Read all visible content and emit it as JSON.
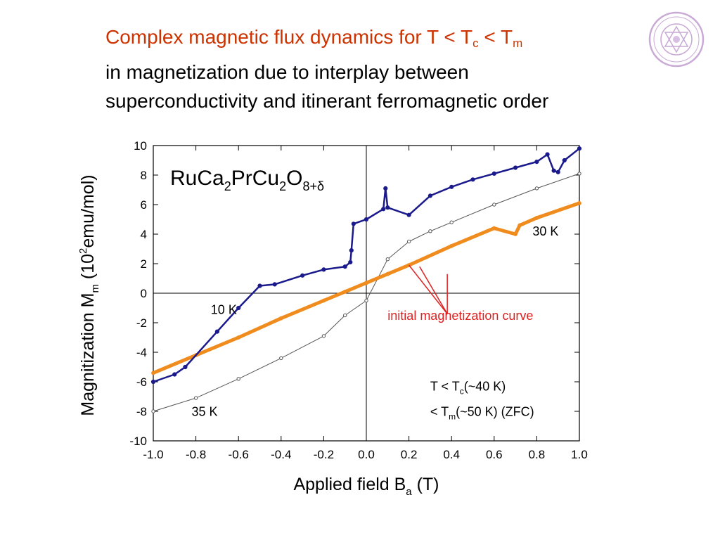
{
  "slide": {
    "title_line1_main": "Complex magnetic flux dynamics for T < T",
    "title_line1_sub_c": "c",
    "title_line1_mid": " < T",
    "title_line1_sub_m": "m",
    "title_line2": "in magnetization due to interplay between",
    "title_line3": "superconductivity and itinerant ferromagnetic order",
    "logo_icon": "university-seal-icon"
  },
  "chart_data": {
    "type": "line",
    "compound": {
      "main": "RuCa",
      "s1": "2",
      "m2": "PrCu",
      "s2": "2",
      "m3": "O",
      "s3": "8+δ"
    },
    "xlabel": {
      "main": "Applied field  B",
      "sub": "a",
      "tail": " (T)"
    },
    "ylabel": {
      "main": "Magnitization  M",
      "sub": "m",
      "mid": " (10",
      "sup": "2",
      "tail": "emu/mol)"
    },
    "xlim": [
      -1.0,
      1.0
    ],
    "ylim": [
      -10,
      10
    ],
    "xticks": [
      "-1.0",
      "-0.8",
      "-0.6",
      "-0.4",
      "-0.2",
      "0.0",
      "0.2",
      "0.4",
      "0.6",
      "0.8",
      "1.0"
    ],
    "yticks": [
      "-10",
      "-8",
      "-6",
      "-4",
      "-2",
      "0",
      "2",
      "4",
      "6",
      "8",
      "10"
    ],
    "grid": false,
    "colors": {
      "t10": "#1a1a8c",
      "t30": "#f08c1e",
      "t35": "#555555",
      "annotation": "#e02020"
    },
    "series": [
      {
        "name": "10 K",
        "label_at": [
          -0.73,
          -1.4
        ],
        "x": [
          -1.0,
          -0.9,
          -0.85,
          -0.7,
          -0.6,
          -0.5,
          -0.43,
          -0.3,
          -0.2,
          -0.1,
          -0.075,
          -0.07,
          -0.06,
          0.0,
          0.08,
          0.09,
          0.1,
          0.2,
          0.3,
          0.4,
          0.5,
          0.6,
          0.7,
          0.8,
          0.85,
          0.88,
          0.9,
          0.93,
          1.0
        ],
        "y": [
          -6.0,
          -5.5,
          -5.0,
          -2.6,
          -1.0,
          0.5,
          0.6,
          1.2,
          1.6,
          1.8,
          2.1,
          2.9,
          4.7,
          5.0,
          5.7,
          7.1,
          5.8,
          5.3,
          6.6,
          7.2,
          7.7,
          8.1,
          8.5,
          8.9,
          9.4,
          8.3,
          8.2,
          9.0,
          9.8
        ]
      },
      {
        "name": "30 K",
        "label_at": [
          0.78,
          3.9
        ],
        "x": [
          -1.0,
          -0.8,
          -0.6,
          -0.4,
          -0.2,
          -0.1,
          0.0,
          0.1,
          0.2,
          0.4,
          0.6,
          0.7,
          0.72,
          0.8,
          1.0
        ],
        "y": [
          -5.4,
          -4.2,
          -3.0,
          -1.7,
          -0.5,
          0.1,
          0.7,
          1.3,
          1.9,
          3.2,
          4.4,
          4.0,
          4.6,
          5.1,
          6.1
        ]
      },
      {
        "name": "35 K",
        "label_at": [
          -0.82,
          -8.3
        ],
        "x": [
          -1.0,
          -0.8,
          -0.6,
          -0.4,
          -0.2,
          -0.1,
          0.0,
          0.1,
          0.2,
          0.3,
          0.4,
          0.6,
          0.8,
          1.0
        ],
        "y": [
          -8.0,
          -7.1,
          -5.8,
          -4.4,
          -2.9,
          -1.5,
          -0.5,
          2.3,
          3.5,
          4.2,
          4.8,
          6.0,
          7.1,
          8.1
        ]
      }
    ],
    "annotations": {
      "initial_curve_label": "initial magnetization curve",
      "note_line1_pre": "T < T",
      "note_line1_sub": "c",
      "note_line1_post": "(~40 K)",
      "note_line2_pre": "< T",
      "note_line2_sub": "m",
      "note_line2_post": "(~50 K) (ZFC)"
    }
  }
}
